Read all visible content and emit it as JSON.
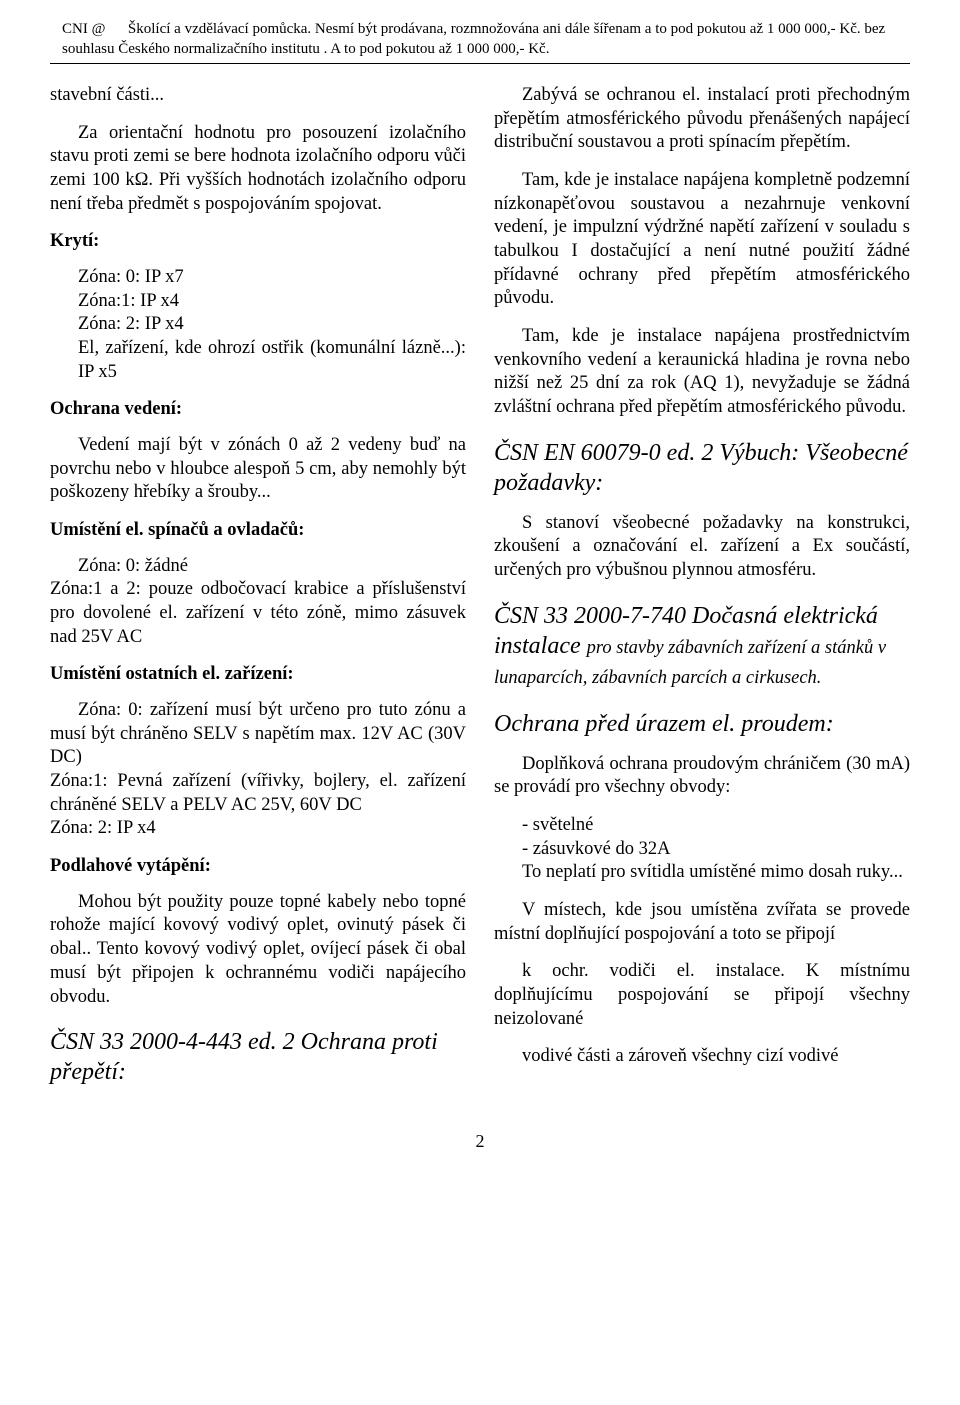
{
  "header": {
    "line1_prefix": "CNI @",
    "line1_main": "Školící a vzdělávací pomůcka. Nesmí být prodávana, rozmnožována ani dále šířenam a to pod pokutou až 1 000 000,- Kč. bez",
    "line2": "souhlasu Českého normalizačního institutu . A to pod pokutou až 1 000 000,- Kč."
  },
  "left": {
    "p1": "stavební části...",
    "p2": "Za orientační hodnotu pro posouzení izolačního stavu proti zemi se bere hodnota izolačního odporu vůči zemi 100 kΩ. Při vyšších hodnotách izolačního odporu není třeba předmět s pospojováním spojovat.",
    "h_kryti": "Krytí:",
    "kryti_lines": {
      "l1": "Zóna: 0:   IP x7",
      "l2": "Zóna:1:    IP x4",
      "l3": "Zóna: 2:   IP x4",
      "l4": "El, zařízení, kde ohrozí ostřik (komunální lázně...):       IP x5"
    },
    "h_ochrana_vedeni": "Ochrana vedení:",
    "p_ochrana_vedeni": "Vedení mají být v zónách 0 až 2 vedeny buď na povrchu nebo v hloubce alespoň 5 cm, aby nemohly být poškozeny hřebíky a šrouby...",
    "h_umisteni_spinacu": "Umístění el. spínačů a ovladačů:",
    "spinacu_block": "Zóna: 0:                       žádné\nZóna:1 a 2:               pouze    odbočovací krabice a příslušenství pro dovolené el. zařízení v této zóně, mimo zásuvek  nad 25V AC",
    "h_umisteni_ostatnich": "Umístění ostatních el. zařízení:",
    "ostatnich_block": "Zóna: 0:   zařízení musí být určeno pro tuto zónu    a  musí  být  chráněno  SELV  s  napětím max. 12V AC (30V DC)\nZóna:1:    Pevná  zařízení  (vířivky,  bojlery, el.  zařízení  chráněné  SELV  a  PELV  AC  25V, 60V DC\nZóna: 2:   IP x4",
    "h_podlahove": "Podlahové vytápění:",
    "p_podlahove": "Mohou být použity pouze topné kabely nebo topné rohože mající kovový vodivý oplet, ovinutý pásek či obal.. Tento kovový vodivý oplet, ovíjecí pásek či obal musí být připojen k ochrannému vodiči napájecího obvodu.",
    "sec_443": "ČSN 33 2000-4-443 ed. 2 Ochrana proti přepětí:"
  },
  "right": {
    "p1": "Zabývá se ochranou el.    instalací  proti  přechodným přepětím atmosférického původu přenášených napájecí distribuční soustavou a proti spínacím přepětím.",
    "p2": "Tam,  kde  je  instalace  napájena  kompletně podzemní nízkonapěťovou soustavou a nezahrnuje venkovní vedení, je impulzní výdržné napětí zařízení v souladu s tabulkou I dostačující a není nutné použití žádné přídavné ochrany před přepětím atmosférického původu.",
    "p3": "Tam, kde je instalace napájena prostřednictvím  venkovního vedení a keraunická hladina je rovna nebo nižší než 25 dní za rok (AQ 1), nevyžaduje se žádná zvláštní ochrana před přepětím atmosférického původu.",
    "sec_60079": "ČSN EN 60079-0 ed. 2 Výbuch: Všeobecné požadavky:",
    "p_60079": "S stanoví všeobecné požadavky na konstrukci, zkoušení a označování el. zařízení a Ex součástí,    určených    pro       výbušnou    plynnou atmosféru.",
    "sec_740_main": "ČSN 33 2000-7-740 Dočasná elektrická instalace ",
    "sec_740_sub": "pro stavby zábavních zařízení a stánků v lunaparcích, zábavních parcích a cirkusech.",
    "sec_ochrana_proudem": "Ochrana před úrazem el. proudem:",
    "p_dop1": "Doplňková  ochrana  proudovým  chráničem (30 mA)  se provádí pro všechny obvody:",
    "li1": "- světelné",
    "li2": "- zásuvkové do 32A",
    "p_neplati": "To neplatí pro svítidla umístěné mimo dosah ruky...",
    "p_mista": "V místech, kde jsou umístěna zvířata se provede  místní  doplňující  pospojování  a  toto  se připojí",
    "p_kochr": "k ochr.  vodiči el.  instalace. K místnímu doplňujícímu   pospojování   se   připojí   všechny neizolované",
    "p_vodive": "vodivé části a zároveň všechny cizí vodivé"
  },
  "page_number": "2"
}
